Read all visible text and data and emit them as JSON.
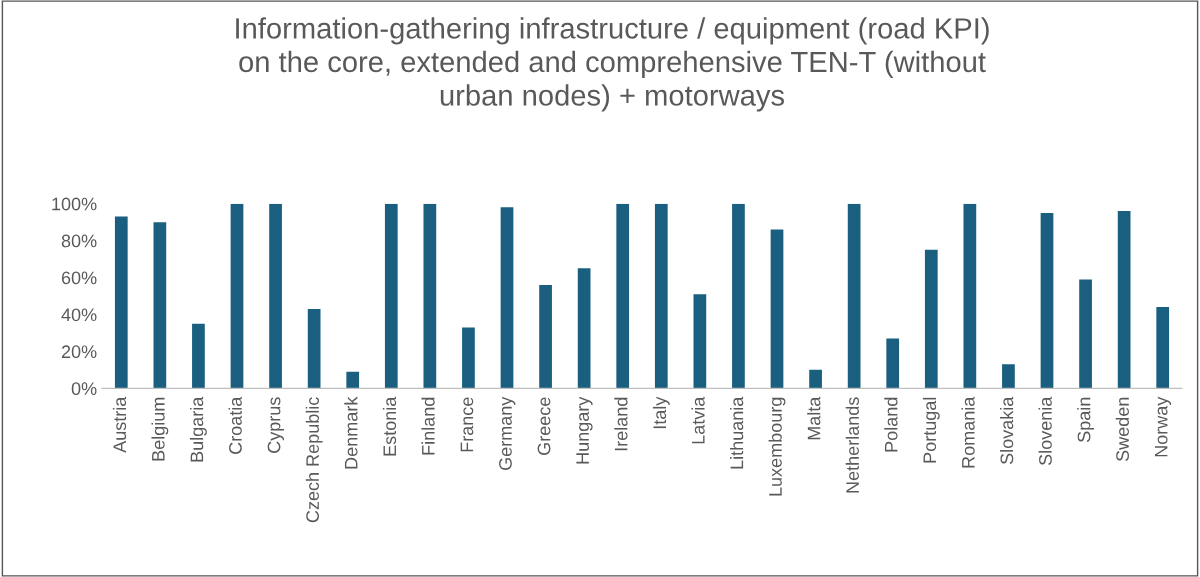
{
  "chart_data": {
    "type": "bar",
    "title": "Information-gathering infrastructure / equipment (road KPI)\non the core, extended and comprehensive TEN-T (without\nurban nodes) + motorways",
    "categories": [
      "Austria",
      "Belgium",
      "Bulgaria",
      "Croatia",
      "Cyprus",
      "Czech Republic",
      "Denmark",
      "Estonia",
      "Finland",
      "France",
      "Germany",
      "Greece",
      "Hungary",
      "Ireland",
      "Italy",
      "Latvia",
      "Lithuania",
      "Luxembourg",
      "Malta",
      "Netherlands",
      "Poland",
      "Portugal",
      "Romania",
      "Slovakia",
      "Slovenia",
      "Spain",
      "Sweden",
      "Norway"
    ],
    "values": [
      93,
      90,
      35,
      100,
      100,
      43,
      9,
      100,
      100,
      33,
      98,
      56,
      65,
      100,
      100,
      51,
      100,
      86,
      10,
      100,
      27,
      75,
      100,
      13,
      95,
      59,
      96,
      44
    ],
    "color": "#1a5f80",
    "ylim": [
      0,
      100
    ],
    "yticks": [
      {
        "value": 0,
        "label": "0%"
      },
      {
        "value": 20,
        "label": "20%"
      },
      {
        "value": 40,
        "label": "40%"
      },
      {
        "value": 60,
        "label": "60%"
      },
      {
        "value": 80,
        "label": "80%"
      },
      {
        "value": 100,
        "label": "100%"
      }
    ],
    "grid": false,
    "legend": false
  }
}
